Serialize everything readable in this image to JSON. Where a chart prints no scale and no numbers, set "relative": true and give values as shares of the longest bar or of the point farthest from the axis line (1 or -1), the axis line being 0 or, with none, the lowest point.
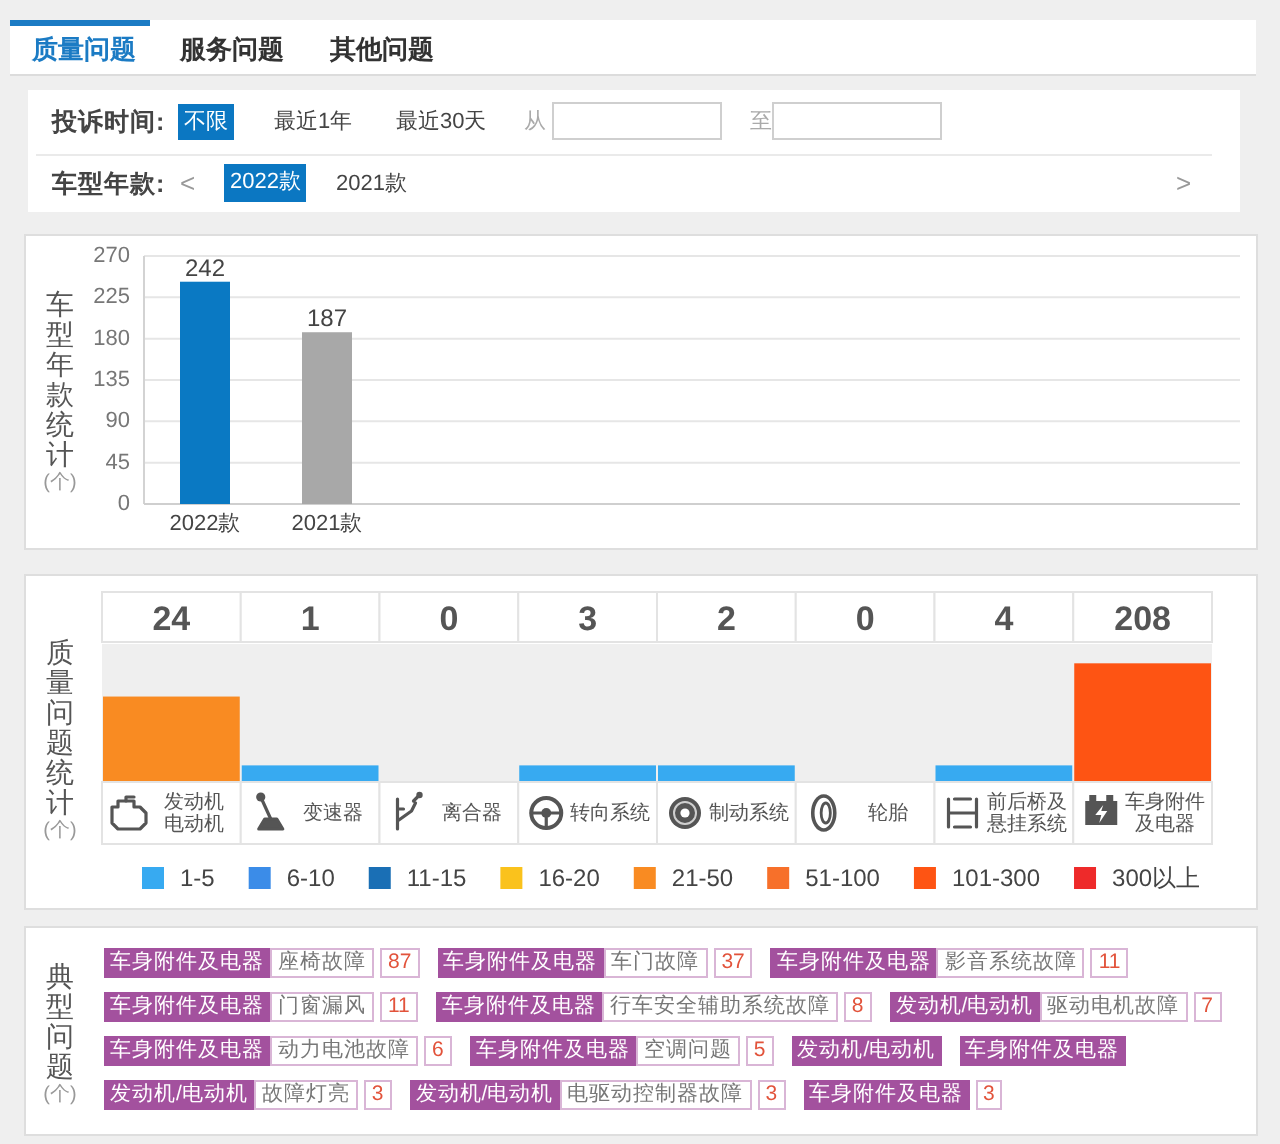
{
  "chart_data": [
    {
      "type": "other",
      "annotations": [
        "质量问题",
        "服务问题",
        "其他问题",
        "投诉时间:",
        "不限",
        "最近1年",
        "最近30天",
        "从",
        "至",
        "车型年款:",
        "<",
        "2022款",
        "2021款",
        ">"
      ]
    },
    {
      "type": "bar",
      "ylabel": "车型年款统计(个)",
      "categories": [
        "2022款",
        "2021款"
      ],
      "values": [
        242,
        187
      ],
      "colors": [
        "#0a79c3",
        "#a8a8a8"
      ],
      "ylim": [
        0,
        270
      ],
      "yticks": [
        0,
        45,
        90,
        135,
        180,
        225,
        270
      ],
      "grid": "y",
      "data_labels": true
    },
    {
      "type": "bar",
      "ylabel": "质量问题统计(个)",
      "relative": true,
      "categories": [
        "发动机电动机",
        "变速器",
        "离合器",
        "转向系统",
        "制动系统",
        "轮胎",
        "前后桥及悬挂系统",
        "车身附件及电器"
      ],
      "value_labels": [
        "24",
        "1",
        "0",
        "3",
        "2",
        "0",
        "4",
        "208"
      ],
      "series": [
        {
          "name": "1-5",
          "color": "#37aaf1",
          "values": [
            null,
            0.14,
            null,
            0.14,
            0.14,
            null,
            0.14,
            null
          ]
        },
        {
          "name": "6-10",
          "color": "#3b8ce8",
          "values": [
            null,
            null,
            null,
            null,
            null,
            null,
            null,
            null
          ]
        },
        {
          "name": "11-15",
          "color": "#1a6fb5",
          "values": [
            null,
            null,
            null,
            null,
            null,
            null,
            null,
            null
          ]
        },
        {
          "name": "16-20",
          "color": "#fac21c",
          "values": [
            null,
            null,
            null,
            null,
            null,
            null,
            null,
            null
          ]
        },
        {
          "name": "21-50",
          "color": "#f98b22",
          "values": [
            0.72,
            null,
            null,
            null,
            null,
            null,
            null,
            null
          ]
        },
        {
          "name": "51-100",
          "color": "#f7702a",
          "values": [
            null,
            null,
            null,
            null,
            null,
            null,
            null,
            null
          ]
        },
        {
          "name": "101-300",
          "color": "#fe5413",
          "values": [
            null,
            null,
            null,
            null,
            null,
            null,
            null,
            1
          ]
        },
        {
          "name": "300以上",
          "color": "#ee2a2a",
          "values": [
            null,
            null,
            null,
            null,
            null,
            null,
            null,
            null
          ]
        }
      ],
      "legend": "bottom"
    },
    {
      "type": "other",
      "ylabel": "典型问题(个)",
      "categories": [
        "座椅故障",
        "车门故障",
        "影音系统故障",
        "门窗漏风",
        "行车安全辅助系统故障",
        "驱动电机故障",
        "动力电池故障",
        "空调问题",
        null,
        null,
        "故障灯亮",
        "电驱动控制器故障",
        null
      ],
      "values": [
        87,
        37,
        11,
        11,
        8,
        7,
        6,
        5,
        null,
        null,
        3,
        3,
        3
      ],
      "data_labels": true,
      "annotations": [
        "车身附件及电器",
        "车身附件及电器",
        "车身附件及电器",
        "车身附件及电器",
        "车身附件及电器",
        "发动机/电动机",
        "车身附件及电器",
        "车身附件及电器",
        "发动机/电动机",
        "车身附件及电器",
        "发动机/电动机",
        "发动机/电动机",
        "车身附件及电器"
      ]
    }
  ]
}
